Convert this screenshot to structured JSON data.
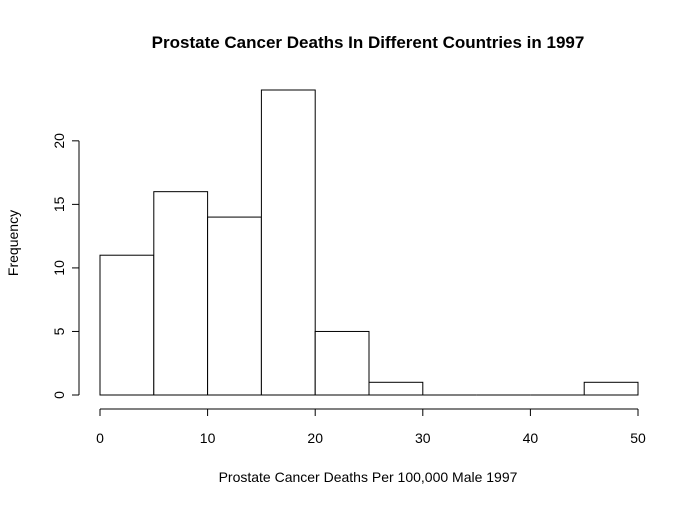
{
  "chart_data": {
    "type": "bar",
    "title": "Prostate Cancer Deaths In Different Countries in 1997",
    "xlabel": "Prostate Cancer Deaths Per 100,000 Male 1997",
    "ylabel": "Frequency",
    "bins": [
      {
        "start": 0,
        "end": 5,
        "count": 11
      },
      {
        "start": 5,
        "end": 10,
        "count": 16
      },
      {
        "start": 10,
        "end": 15,
        "count": 14
      },
      {
        "start": 15,
        "end": 20,
        "count": 24
      },
      {
        "start": 20,
        "end": 25,
        "count": 5
      },
      {
        "start": 25,
        "end": 30,
        "count": 1
      },
      {
        "start": 30,
        "end": 35,
        "count": 0
      },
      {
        "start": 35,
        "end": 40,
        "count": 0
      },
      {
        "start": 40,
        "end": 45,
        "count": 0
      },
      {
        "start": 45,
        "end": 50,
        "count": 1
      }
    ],
    "xlim": [
      0,
      50
    ],
    "ylim": [
      0,
      24
    ],
    "x_ticks": [
      0,
      10,
      20,
      30,
      40,
      50
    ],
    "y_ticks": [
      0,
      5,
      10,
      15,
      20
    ],
    "grid": false,
    "legend": "none"
  }
}
